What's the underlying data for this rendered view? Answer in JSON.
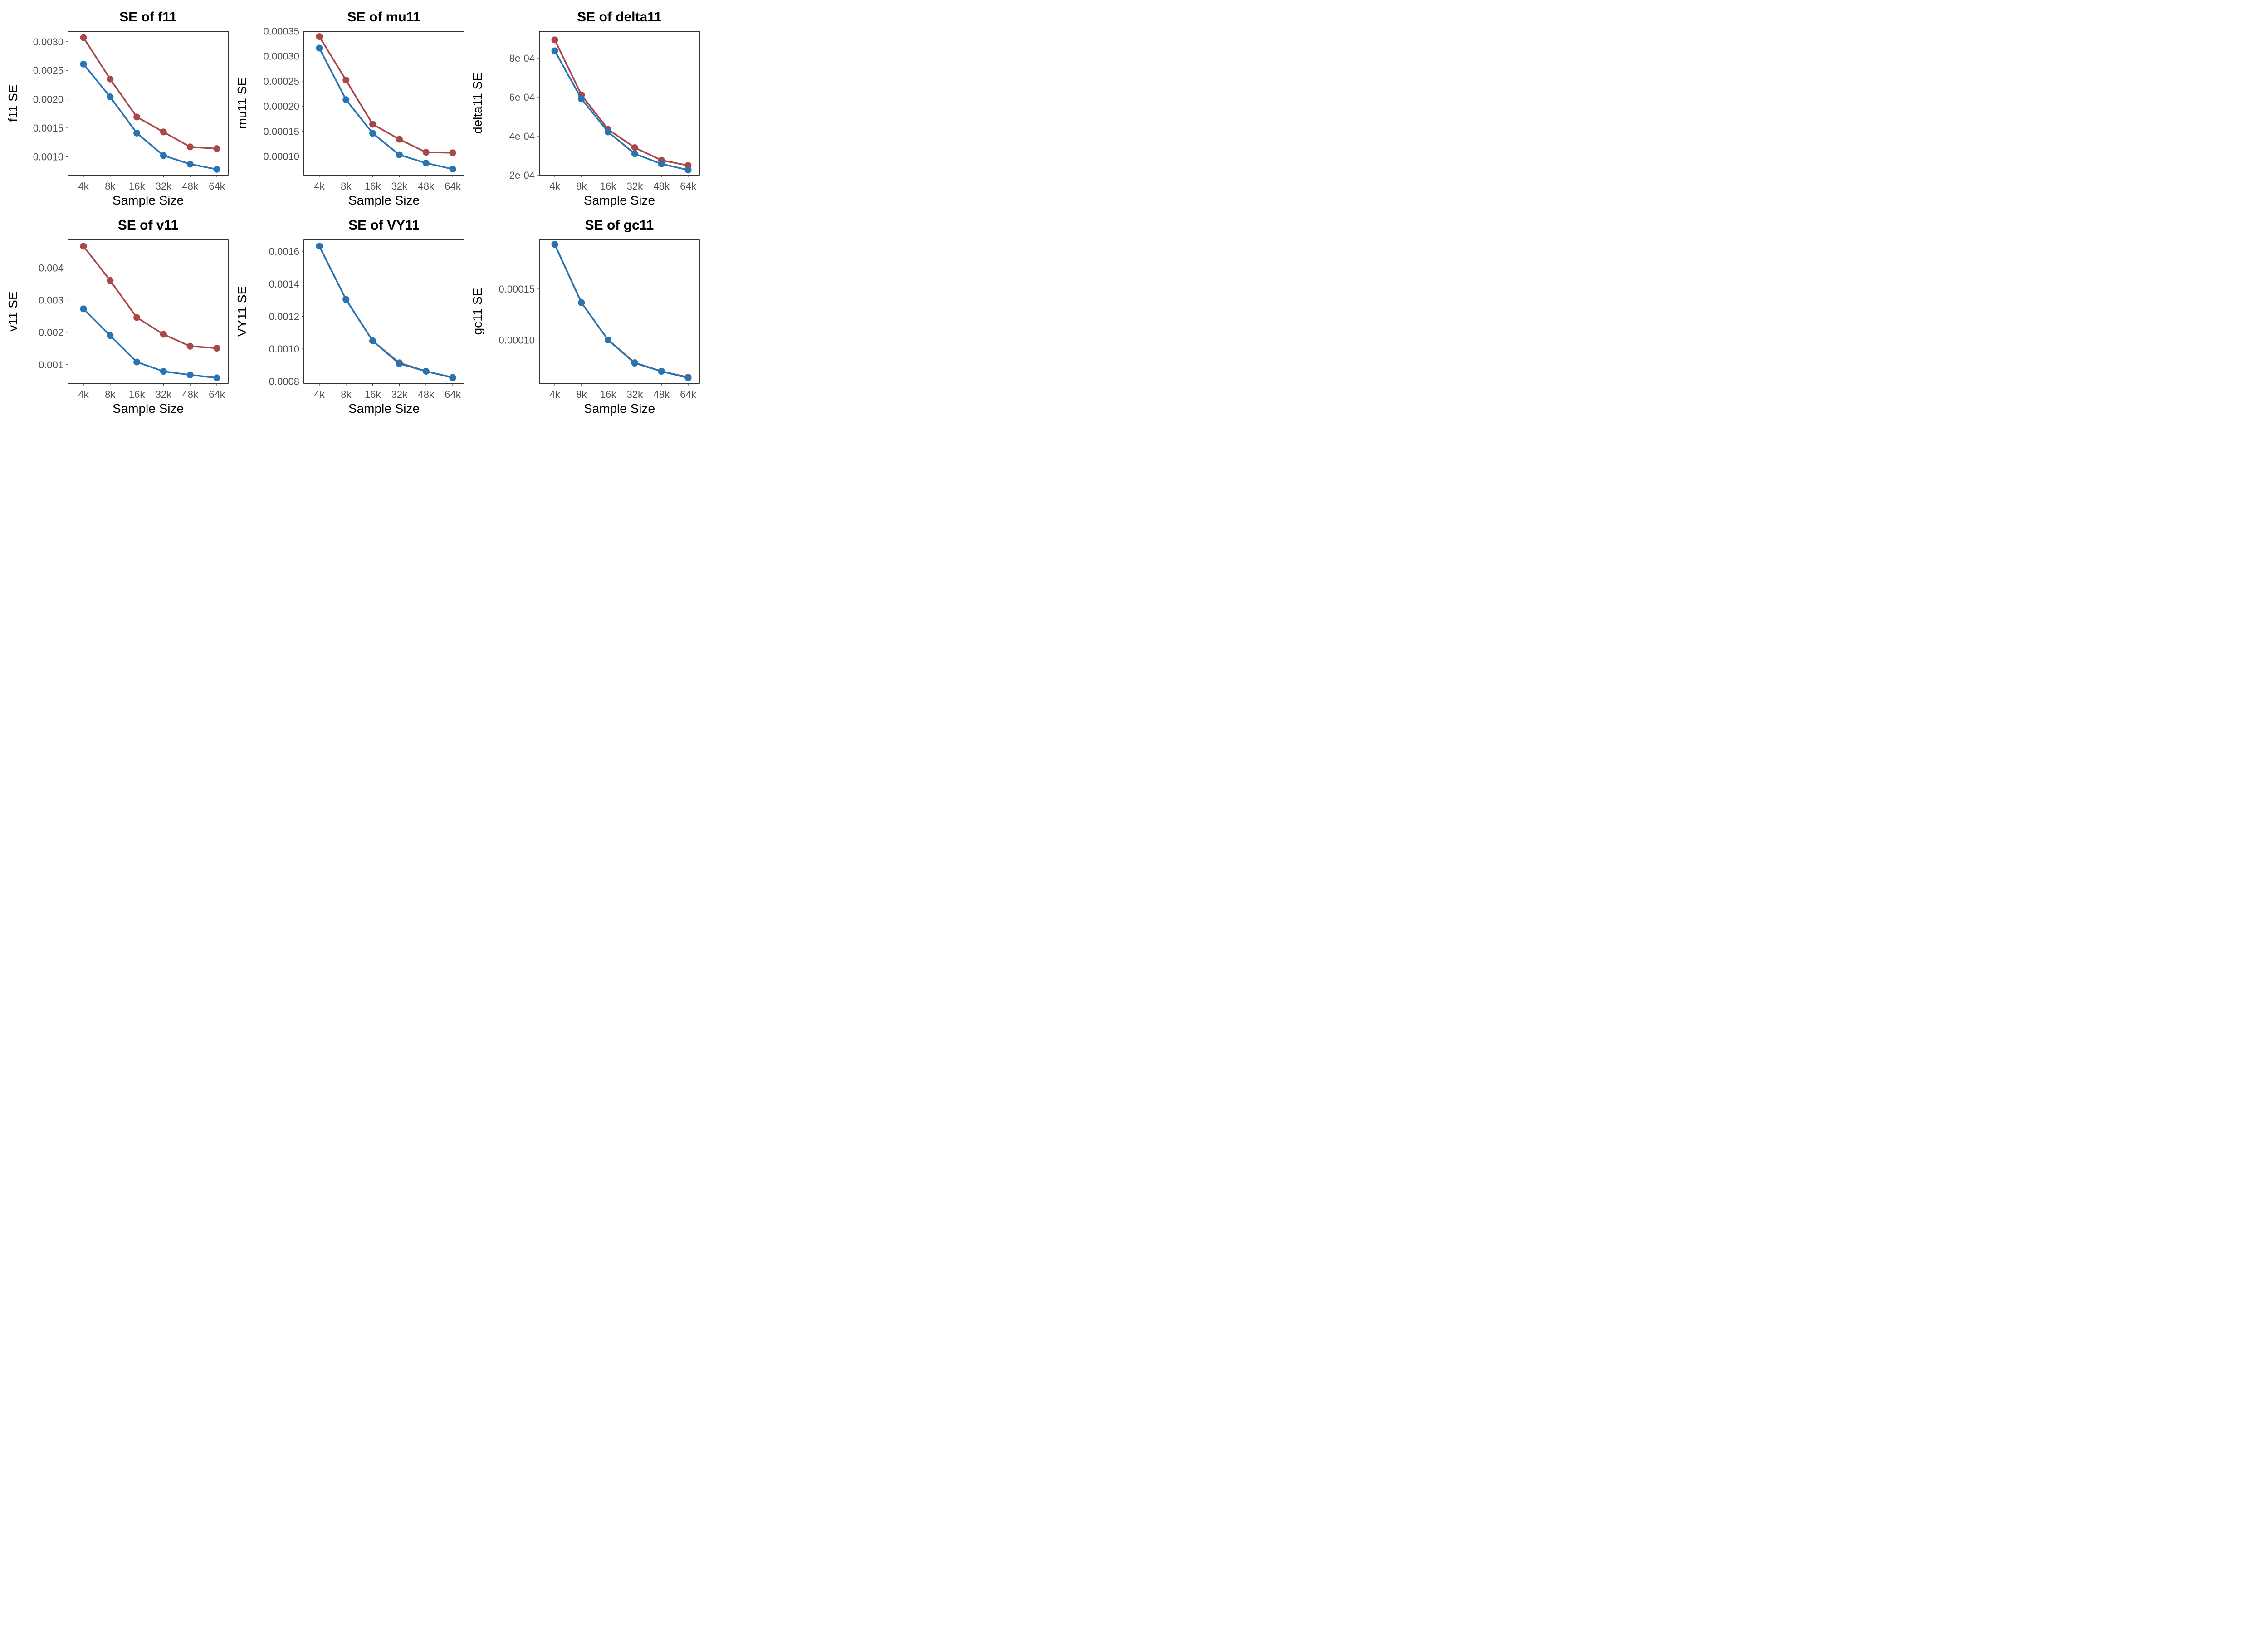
{
  "colors": {
    "red": "#A94848",
    "blue": "#2874B2"
  },
  "chart_data": [
    {
      "type": "line",
      "title": "SE of f11",
      "xlabel": "Sample Size",
      "ylabel": "f11 SE",
      "categories": [
        "4k",
        "8k",
        "16k",
        "32k",
        "48k",
        "64k"
      ],
      "ylim": [
        0.00068,
        0.00318
      ],
      "yticks": [
        0.001,
        0.0015,
        0.002,
        0.0025,
        0.003
      ],
      "ytick_labels": [
        "0.0010",
        "0.0015",
        "0.0020",
        "0.0025",
        "0.0030"
      ],
      "series": [
        {
          "color": "#A94848",
          "values": [
            0.00307,
            0.00235,
            0.00169,
            0.00143,
            0.00117,
            0.00114
          ]
        },
        {
          "color": "#2874B2",
          "values": [
            0.00261,
            0.00204,
            0.00141,
            0.00102,
            0.00087,
            0.00078
          ]
        }
      ]
    },
    {
      "type": "line",
      "title": "SE of mu11",
      "xlabel": "Sample Size",
      "ylabel": "mu11 SE",
      "categories": [
        "4k",
        "8k",
        "16k",
        "32k",
        "48k",
        "64k"
      ],
      "ylim": [
        6.25e-05,
        0.0003495
      ],
      "yticks": [
        0.0001,
        0.00015,
        0.0002,
        0.00025,
        0.0003,
        0.00035
      ],
      "ytick_labels": [
        "0.00010",
        "0.00015",
        "0.00020",
        "0.00025",
        "0.00030",
        "0.00035"
      ],
      "series": [
        {
          "color": "#A94848",
          "values": [
            0.000339,
            0.000252,
            0.000164,
            0.000134,
            0.000108,
            0.000107
          ]
        },
        {
          "color": "#2874B2",
          "values": [
            0.000316,
            0.000213,
            0.000146,
            0.000103,
            8.65e-05,
            7.45e-05
          ]
        }
      ]
    },
    {
      "type": "line",
      "title": "SE of delta11",
      "xlabel": "Sample Size",
      "ylabel": "delta11 SE",
      "categories": [
        "4k",
        "8k",
        "16k",
        "32k",
        "48k",
        "64k"
      ],
      "ylim": [
        0.0002,
        0.000937
      ],
      "yticks": [
        0.0002,
        0.0004,
        0.0006,
        0.0008
      ],
      "ytick_labels": [
        "2e-04",
        "4e-04",
        "6e-04",
        "8e-04"
      ],
      "series": [
        {
          "color": "#A94848",
          "values": [
            0.000893,
            0.000611,
            0.000434,
            0.000341,
            0.000276,
            0.000249
          ]
        },
        {
          "color": "#2874B2",
          "values": [
            0.000837,
            0.000591,
            0.000421,
            0.000309,
            0.000257,
            0.000226
          ]
        }
      ]
    },
    {
      "type": "line",
      "title": "SE of v11",
      "xlabel": "Sample Size",
      "ylabel": "v11 SE",
      "categories": [
        "4k",
        "8k",
        "16k",
        "32k",
        "48k",
        "64k"
      ],
      "ylim": [
        0.00042,
        0.00488
      ],
      "yticks": [
        0.001,
        0.002,
        0.003,
        0.004
      ],
      "ytick_labels": [
        "0.001",
        "0.002",
        "0.003",
        "0.004"
      ],
      "series": [
        {
          "color": "#A94848",
          "values": [
            0.00467,
            0.00361,
            0.00246,
            0.00194,
            0.00157,
            0.00151
          ]
        },
        {
          "color": "#2874B2",
          "values": [
            0.00273,
            0.0019,
            0.00108,
            0.00079,
            0.00068,
            0.00059
          ]
        }
      ]
    },
    {
      "type": "line",
      "title": "SE of VY11",
      "xlabel": "Sample Size",
      "ylabel": "VY11 SE",
      "categories": [
        "4k",
        "8k",
        "16k",
        "32k",
        "48k",
        "64k"
      ],
      "ylim": [
        0.000788,
        0.001673
      ],
      "yticks": [
        0.0008,
        0.001,
        0.0012,
        0.0014,
        0.0016
      ],
      "ytick_labels": [
        "0.0008",
        "0.0010",
        "0.0012",
        "0.0014",
        "0.0016"
      ],
      "series": [
        {
          "color": "#A94848",
          "values": [
            0.001632,
            0.001304,
            0.001049,
            0.000914,
            0.000862,
            0.000824
          ]
        },
        {
          "color": "#2874B2",
          "values": [
            0.001632,
            0.001304,
            0.001049,
            0.000909,
            0.000862,
            0.000822
          ]
        }
      ]
    },
    {
      "type": "line",
      "title": "SE of gc11",
      "xlabel": "Sample Size",
      "ylabel": "gc11 SE",
      "categories": [
        "4k",
        "8k",
        "16k",
        "32k",
        "48k",
        "64k"
      ],
      "ylim": [
        5.76e-05,
        0.0001985
      ],
      "yticks": [
        0.0001,
        0.00015
      ],
      "ytick_labels": [
        "0.00010",
        "0.00015"
      ],
      "series": [
        {
          "color": "#A94848",
          "values": [
            0.0001937,
            0.0001366,
            0.0001001,
            7.78e-05,
            6.94e-05,
            6.35e-05
          ]
        },
        {
          "color": "#2874B2",
          "values": [
            0.0001937,
            0.0001366,
            0.0001001,
            7.73e-05,
            6.94e-05,
            6.28e-05
          ]
        }
      ]
    }
  ]
}
